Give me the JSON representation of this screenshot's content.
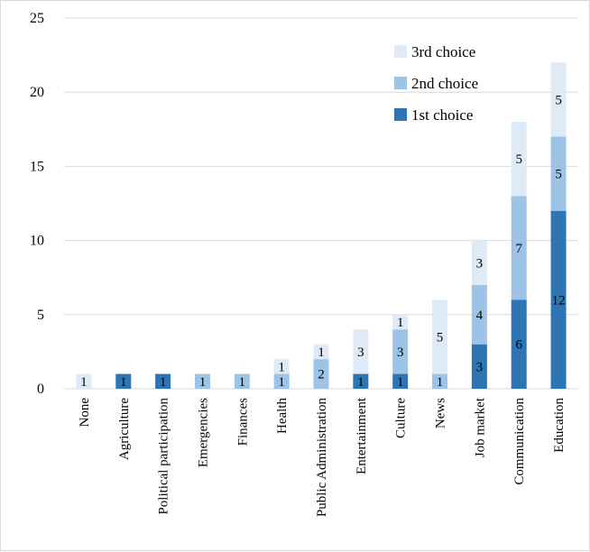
{
  "chart_data": {
    "type": "bar",
    "stacked": true,
    "title": "",
    "xlabel": "",
    "ylabel": "",
    "ylim": [
      0,
      25
    ],
    "yticks": [
      0,
      5,
      10,
      15,
      20,
      25
    ],
    "grid": true,
    "legend_position": "top-right",
    "categories": [
      "None",
      "Agriculture",
      "Political participation",
      "Emergencies",
      "Finances",
      "Health",
      "Public Administration",
      "Entertainment",
      "Culture",
      "News",
      "Job market",
      "Communication",
      "Education"
    ],
    "series": [
      {
        "name": "1st choice",
        "color": "#2e75b6",
        "values": [
          0,
          1,
          1,
          0,
          0,
          0,
          0,
          1,
          1,
          0,
          3,
          6,
          12
        ]
      },
      {
        "name": "2nd choice",
        "color": "#9dc3e6",
        "values": [
          0,
          0,
          0,
          1,
          1,
          1,
          2,
          0,
          3,
          1,
          4,
          7,
          5
        ]
      },
      {
        "name": "3rd choice",
        "color": "#deebf7",
        "values": [
          1,
          0,
          0,
          0,
          0,
          1,
          1,
          3,
          1,
          5,
          3,
          5,
          5
        ]
      }
    ]
  }
}
